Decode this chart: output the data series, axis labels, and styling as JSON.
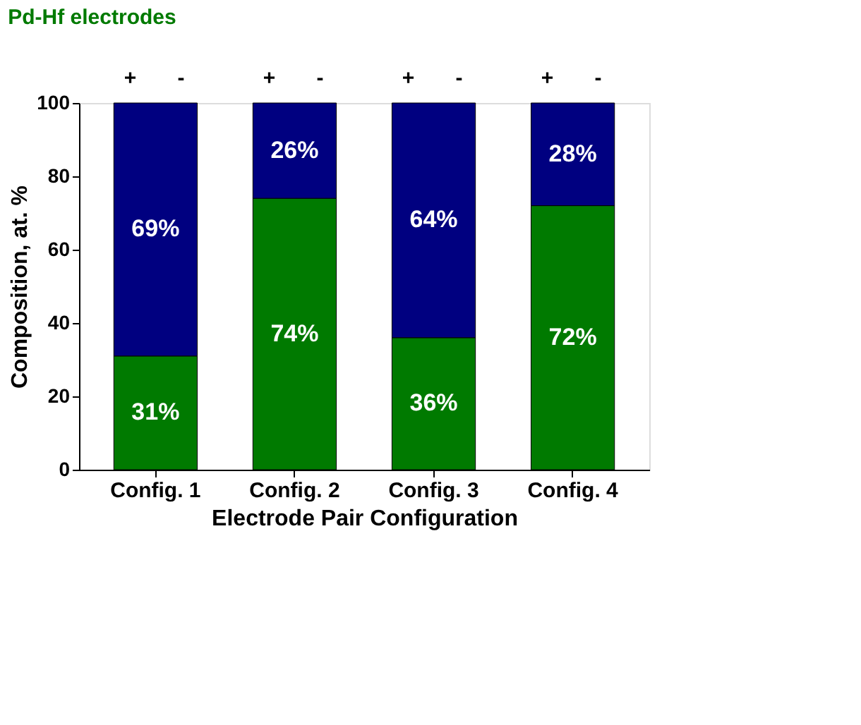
{
  "chart_data": {
    "type": "bar",
    "stacked": true,
    "title": "Pd-Hf electrodes",
    "xlabel": "Electrode Pair Configuration",
    "ylabel": "Composition, at. %",
    "categories": [
      "Config. 1",
      "Config. 2",
      "Config. 3",
      "Config. 4"
    ],
    "series": [
      {
        "color": "#007a00",
        "values": [
          31,
          74,
          36,
          72
        ],
        "value_labels": [
          "31%",
          "74%",
          "36%",
          "72%"
        ]
      },
      {
        "color": "#000080",
        "values": [
          69,
          26,
          64,
          28
        ],
        "value_labels": [
          "69%",
          "26%",
          "64%",
          "28%"
        ]
      }
    ],
    "annotations": [
      "+",
      "-",
      "+",
      "-",
      "+",
      "-",
      "+",
      "-"
    ],
    "ylim": [
      0,
      100
    ],
    "yticks": [
      0,
      20,
      40,
      60,
      80,
      100
    ],
    "grid": false
  }
}
